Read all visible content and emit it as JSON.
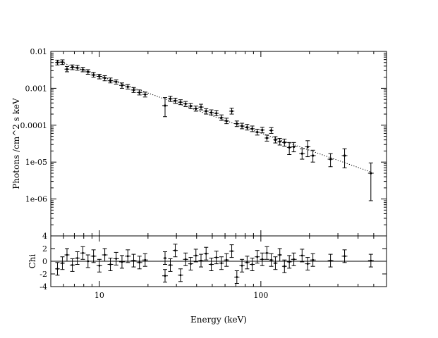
{
  "chart_data": [
    {
      "type": "scatter",
      "panel": "spectrum",
      "xlabel": "Energy (keV)",
      "ylabel": "Photons /cm^2 s keV",
      "x_scale": "log",
      "y_scale": "log",
      "xlim": [
        5.0,
        600
      ],
      "ylim": [
        1e-07,
        0.01
      ],
      "y_ticks": [
        0.01,
        0.001,
        0.0001,
        1e-05,
        1e-06
      ],
      "y_tick_labels": [
        "0.01",
        "0.001",
        "0.0001",
        "1e-05",
        "1e-06"
      ],
      "x_ticks": [
        10,
        100
      ],
      "x_tick_labels": [
        "10",
        "100"
      ],
      "model": {
        "style": "dotted",
        "x": [
          5.5,
          480
        ],
        "y": [
          0.0055,
          5.4e-06
        ]
      },
      "points": [
        {
          "x": 5.5,
          "y": 0.005,
          "lo": 0.0043,
          "hi": 0.0058
        },
        {
          "x": 5.9,
          "y": 0.0051,
          "lo": 0.0044,
          "hi": 0.0059
        },
        {
          "x": 6.3,
          "y": 0.0033,
          "lo": 0.0028,
          "hi": 0.0039
        },
        {
          "x": 6.8,
          "y": 0.0037,
          "lo": 0.0032,
          "hi": 0.0043
        },
        {
          "x": 7.3,
          "y": 0.0036,
          "lo": 0.0031,
          "hi": 0.0042
        },
        {
          "x": 7.9,
          "y": 0.0032,
          "lo": 0.0028,
          "hi": 0.0037
        },
        {
          "x": 8.5,
          "y": 0.0028,
          "lo": 0.0024,
          "hi": 0.0032
        },
        {
          "x": 9.2,
          "y": 0.0023,
          "lo": 0.002,
          "hi": 0.0027
        },
        {
          "x": 10.0,
          "y": 0.0021,
          "lo": 0.0018,
          "hi": 0.0024
        },
        {
          "x": 10.8,
          "y": 0.0019,
          "lo": 0.0016,
          "hi": 0.0022
        },
        {
          "x": 11.7,
          "y": 0.0016,
          "lo": 0.0014,
          "hi": 0.0019
        },
        {
          "x": 12.7,
          "y": 0.0015,
          "lo": 0.0013,
          "hi": 0.0017
        },
        {
          "x": 13.8,
          "y": 0.0012,
          "lo": 0.001,
          "hi": 0.0014
        },
        {
          "x": 15.0,
          "y": 0.0011,
          "lo": 0.00095,
          "hi": 0.00127
        },
        {
          "x": 16.3,
          "y": 0.0009,
          "lo": 0.00077,
          "hi": 0.00105
        },
        {
          "x": 17.7,
          "y": 0.00077,
          "lo": 0.00066,
          "hi": 0.0009
        },
        {
          "x": 19.2,
          "y": 0.00068,
          "lo": 0.00058,
          "hi": 0.00079
        },
        {
          "x": 25.5,
          "y": 0.00034,
          "lo": 0.00017,
          "hi": 0.00056
        },
        {
          "x": 27.5,
          "y": 0.00052,
          "lo": 0.00044,
          "hi": 0.00061
        },
        {
          "x": 29.5,
          "y": 0.00046,
          "lo": 0.00039,
          "hi": 0.00054
        },
        {
          "x": 31.8,
          "y": 0.00042,
          "lo": 0.00036,
          "hi": 0.00049
        },
        {
          "x": 34.2,
          "y": 0.00038,
          "lo": 0.00032,
          "hi": 0.00044
        },
        {
          "x": 36.8,
          "y": 0.00033,
          "lo": 0.00028,
          "hi": 0.00039
        },
        {
          "x": 39.6,
          "y": 0.00028,
          "lo": 0.00024,
          "hi": 0.00033
        },
        {
          "x": 42.6,
          "y": 0.00031,
          "lo": 0.00026,
          "hi": 0.00037
        },
        {
          "x": 45.8,
          "y": 0.00024,
          "lo": 0.0002,
          "hi": 0.00028
        },
        {
          "x": 49.3,
          "y": 0.00022,
          "lo": 0.00019,
          "hi": 0.00026
        },
        {
          "x": 53.0,
          "y": 0.00021,
          "lo": 0.00018,
          "hi": 0.00025
        },
        {
          "x": 57.0,
          "y": 0.00016,
          "lo": 0.000135,
          "hi": 0.00019
        },
        {
          "x": 61.3,
          "y": 0.00013,
          "lo": 0.00011,
          "hi": 0.000155
        },
        {
          "x": 66.0,
          "y": 0.00024,
          "lo": 0.0002,
          "hi": 0.00029
        },
        {
          "x": 71.0,
          "y": 0.00011,
          "lo": 9.2e-05,
          "hi": 0.00013
        },
        {
          "x": 76.4,
          "y": 9.5e-05,
          "lo": 8e-05,
          "hi": 0.000113
        },
        {
          "x": 82.2,
          "y": 8.8e-05,
          "lo": 7.4e-05,
          "hi": 0.000105
        },
        {
          "x": 88.4,
          "y": 8e-05,
          "lo": 6.7e-05,
          "hi": 9.5e-05
        },
        {
          "x": 95.0,
          "y": 6.5e-05,
          "lo": 5.4e-05,
          "hi": 7.8e-05
        },
        {
          "x": 102.0,
          "y": 7.4e-05,
          "lo": 6.2e-05,
          "hi": 8.8e-05
        },
        {
          "x": 109.0,
          "y": 4.5e-05,
          "lo": 3.7e-05,
          "hi": 5.4e-05
        },
        {
          "x": 116.0,
          "y": 7.2e-05,
          "lo": 6e-05,
          "hi": 8.6e-05
        },
        {
          "x": 123.0,
          "y": 4e-05,
          "lo": 3.3e-05,
          "hi": 4.9e-05
        },
        {
          "x": 131.0,
          "y": 3.6e-05,
          "lo": 2.9e-05,
          "hi": 4.4e-05
        },
        {
          "x": 140.0,
          "y": 3.4e-05,
          "lo": 2.7e-05,
          "hi": 4.2e-05
        },
        {
          "x": 150.0,
          "y": 2.5e-05,
          "lo": 1.6e-05,
          "hi": 3.4e-05
        },
        {
          "x": 160.0,
          "y": 2.6e-05,
          "lo": 1.9e-05,
          "hi": 3.4e-05
        },
        {
          "x": 180.0,
          "y": 1.7e-05,
          "lo": 1.2e-05,
          "hi": 2.3e-05
        },
        {
          "x": 195.0,
          "y": 2.6e-05,
          "lo": 1.4e-05,
          "hi": 3.8e-05
        },
        {
          "x": 210.0,
          "y": 1.5e-05,
          "lo": 1e-05,
          "hi": 2.1e-05
        },
        {
          "x": 270.0,
          "y": 1.2e-05,
          "lo": 7.5e-06,
          "hi": 1.7e-05
        },
        {
          "x": 330.0,
          "y": 1.5e-05,
          "lo": 7e-06,
          "hi": 2.3e-05
        },
        {
          "x": 480.0,
          "y": 5e-06,
          "lo": 9e-07,
          "hi": 9.5e-06
        }
      ]
    },
    {
      "type": "scatter",
      "panel": "residuals",
      "xlabel": "Energy (keV)",
      "ylabel": "Chi",
      "x_scale": "log",
      "xlim": [
        5.0,
        600
      ],
      "ylim": [
        -4,
        4
      ],
      "y_ticks": [
        4,
        2,
        0,
        -2,
        -4
      ],
      "y_tick_labels": [
        "4",
        "2",
        "0",
        "-2",
        "-4"
      ],
      "x_ticks": [
        10,
        100
      ],
      "x_tick_labels": [
        "10",
        "100"
      ],
      "zero_line": 0,
      "points": [
        {
          "x": 5.5,
          "y": -1.2
        },
        {
          "x": 5.9,
          "y": -0.3
        },
        {
          "x": 6.3,
          "y": 1.0
        },
        {
          "x": 6.8,
          "y": -0.6
        },
        {
          "x": 7.3,
          "y": 0.5
        },
        {
          "x": 7.9,
          "y": 1.3
        },
        {
          "x": 8.5,
          "y": 0.0
        },
        {
          "x": 9.2,
          "y": 0.8
        },
        {
          "x": 10.0,
          "y": -0.7
        },
        {
          "x": 10.8,
          "y": 1.0
        },
        {
          "x": 11.7,
          "y": -0.5
        },
        {
          "x": 12.7,
          "y": 0.4
        },
        {
          "x": 13.8,
          "y": -0.1
        },
        {
          "x": 15.0,
          "y": 0.8
        },
        {
          "x": 16.3,
          "y": 0.1
        },
        {
          "x": 17.7,
          "y": -0.2
        },
        {
          "x": 19.2,
          "y": 0.2
        },
        {
          "x": 25.5,
          "y": -2.3
        },
        {
          "x": 25.5,
          "y": 0.5
        },
        {
          "x": 27.5,
          "y": -0.6
        },
        {
          "x": 29.5,
          "y": 1.7
        },
        {
          "x": 31.8,
          "y": -2.2
        },
        {
          "x": 34.2,
          "y": 0.3
        },
        {
          "x": 36.8,
          "y": -0.4
        },
        {
          "x": 39.6,
          "y": 0.9
        },
        {
          "x": 42.6,
          "y": 0.1
        },
        {
          "x": 45.8,
          "y": 1.2
        },
        {
          "x": 49.3,
          "y": -0.5
        },
        {
          "x": 53.0,
          "y": 0.6
        },
        {
          "x": 57.0,
          "y": -0.3
        },
        {
          "x": 61.3,
          "y": 0.2
        },
        {
          "x": 66.0,
          "y": 1.6
        },
        {
          "x": 71.0,
          "y": -2.5
        },
        {
          "x": 76.4,
          "y": -0.7
        },
        {
          "x": 82.2,
          "y": -0.2
        },
        {
          "x": 88.4,
          "y": -0.5
        },
        {
          "x": 95.0,
          "y": 0.7
        },
        {
          "x": 102.0,
          "y": 0.3
        },
        {
          "x": 109.0,
          "y": 1.3
        },
        {
          "x": 116.0,
          "y": 0.2
        },
        {
          "x": 123.0,
          "y": -0.3
        },
        {
          "x": 131.0,
          "y": 1.0
        },
        {
          "x": 140.0,
          "y": -0.8
        },
        {
          "x": 150.0,
          "y": -0.1
        },
        {
          "x": 160.0,
          "y": 0.3
        },
        {
          "x": 180.0,
          "y": 0.9
        },
        {
          "x": 195.0,
          "y": -0.4
        },
        {
          "x": 210.0,
          "y": 0.2
        },
        {
          "x": 270.0,
          "y": 0.1
        },
        {
          "x": 330.0,
          "y": 0.8
        },
        {
          "x": 480.0,
          "y": 0.1
        }
      ]
    }
  ]
}
